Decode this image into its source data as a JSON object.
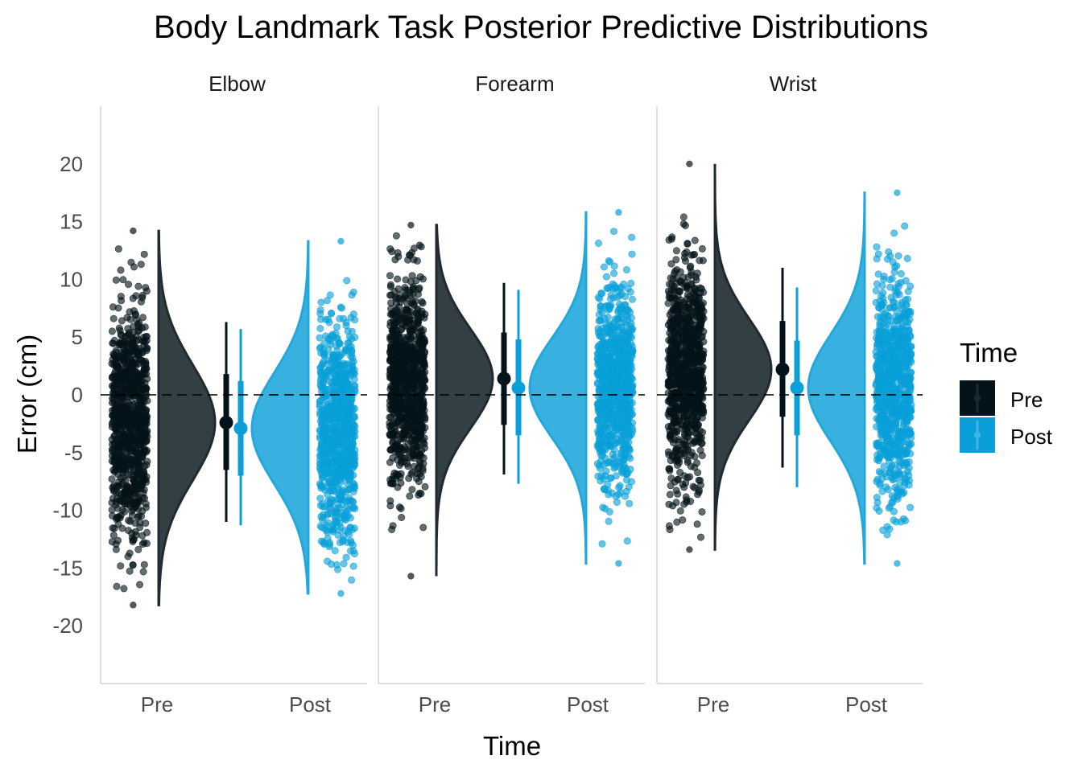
{
  "chart_data": {
    "type": "raincloud",
    "title": "Body Landmark Task Posterior Predictive Distributions",
    "xlabel": "Time",
    "ylabel": "Error (cm)",
    "ylim": [
      -25,
      25
    ],
    "y_ticks": [
      -20,
      -15,
      -10,
      -5,
      0,
      5,
      10,
      15,
      20
    ],
    "categories": [
      "Pre",
      "Post"
    ],
    "reference_line": 0,
    "legend": {
      "title": "Time",
      "position": "right",
      "entries": [
        "Pre",
        "Post"
      ]
    },
    "colors": {
      "Pre": "#041319",
      "Post": "#0a9fd8",
      "Pre_density": "#343f44",
      "Post_density": "#38b1e0"
    },
    "panels": [
      {
        "name": "Elbow",
        "series": [
          {
            "time": "Pre",
            "median": -2.4,
            "interval_66": [
              -6.5,
              1.8
            ],
            "interval_95": [
              -11.0,
              6.3
            ],
            "min": -18.2,
            "max": 14.2,
            "density_sd": 5.0
          },
          {
            "time": "Post",
            "median": -2.9,
            "interval_66": [
              -7.0,
              1.2
            ],
            "interval_95": [
              -11.3,
              5.7
            ],
            "min": -17.2,
            "max": 13.3,
            "density_sd": 4.8
          }
        ]
      },
      {
        "name": "Forearm",
        "series": [
          {
            "time": "Pre",
            "median": 1.4,
            "interval_66": [
              -2.6,
              5.4
            ],
            "interval_95": [
              -6.9,
              9.7
            ],
            "min": -15.7,
            "max": 14.7,
            "density_sd": 4.3
          },
          {
            "time": "Post",
            "median": 0.6,
            "interval_66": [
              -3.5,
              4.8
            ],
            "interval_95": [
              -7.7,
              9.1
            ],
            "min": -14.6,
            "max": 15.8,
            "density_sd": 4.3
          }
        ]
      },
      {
        "name": "Wrist",
        "series": [
          {
            "time": "Pre",
            "median": 2.2,
            "interval_66": [
              -1.9,
              6.4
            ],
            "interval_95": [
              -6.3,
              11.0
            ],
            "min": -13.4,
            "max": 20.0,
            "density_sd": 4.4
          },
          {
            "time": "Post",
            "median": 0.6,
            "interval_66": [
              -3.5,
              4.7
            ],
            "interval_95": [
              -8.0,
              9.3
            ],
            "min": -14.6,
            "max": 17.5,
            "density_sd": 4.6
          }
        ]
      }
    ]
  }
}
